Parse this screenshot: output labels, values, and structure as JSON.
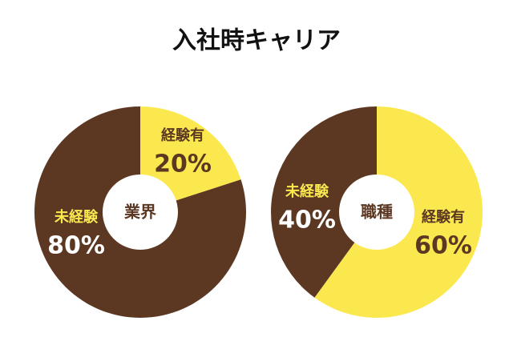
{
  "title": "入社時キャリア",
  "chart_data": [
    {
      "type": "donut",
      "center_label": "業界",
      "categories": [
        "経験有",
        "未経験"
      ],
      "values": [
        20,
        80
      ],
      "value_labels": [
        "20%",
        "80%"
      ],
      "colors": [
        "#fbe84e",
        "#5c3823"
      ]
    },
    {
      "type": "donut",
      "center_label": "職種",
      "categories": [
        "経験有",
        "未経験"
      ],
      "values": [
        60,
        40
      ],
      "value_labels": [
        "60%",
        "40%"
      ],
      "colors": [
        "#fbe84e",
        "#5c3823"
      ]
    }
  ]
}
